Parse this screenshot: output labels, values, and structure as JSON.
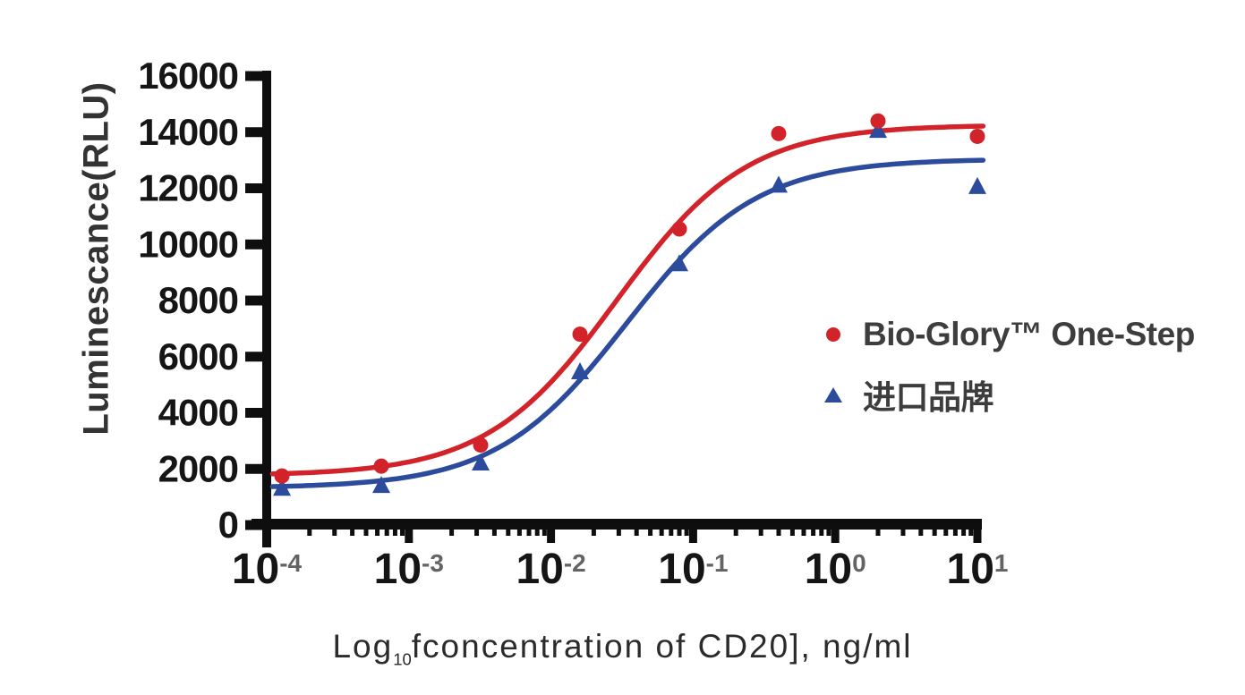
{
  "figure": {
    "background": "#ffffff"
  },
  "chart_data": {
    "type": "scatter",
    "title": "",
    "xlabel": "Log₁₀fconcentration of CD20], ng/ml",
    "xlabel_parts": {
      "prefix": "Log",
      "subscript": "10",
      "rest": "fconcentration of CD20], ng/ml"
    },
    "ylabel": "Luminescance(RLU)",
    "x_scale": "log10",
    "x_axis_range_exponents": [
      -4,
      1
    ],
    "x_ticks": [
      {
        "base": "10",
        "exp": "-4"
      },
      {
        "base": "10",
        "exp": "-3"
      },
      {
        "base": "10",
        "exp": "-2"
      },
      {
        "base": "10",
        "exp": "-1"
      },
      {
        "base": "10",
        "exp": "0"
      },
      {
        "base": "10",
        "exp": "1"
      }
    ],
    "y_ticks": [
      0,
      2000,
      4000,
      6000,
      8000,
      10000,
      12000,
      14000,
      16000
    ],
    "y_axis_range": [
      0,
      16000
    ],
    "grid": false,
    "legend_position": "right-center",
    "colors": {
      "axis": "#0e0e0e",
      "tick_label": "#151515",
      "exponent_label": "#646464",
      "red_series": "#d2232a",
      "blue_series": "#2c4b9c"
    },
    "series": [
      {
        "name": "Bio-Glory™ One-Step",
        "color": "#d2232a",
        "marker": "circle",
        "x": [
          0.000128,
          0.00064,
          0.0032,
          0.016,
          0.08,
          0.4,
          2,
          10
        ],
        "y": [
          1750,
          2100,
          2850,
          6800,
          10550,
          13950,
          14400,
          13850
        ],
        "fit_4pl": {
          "bottom": 1760,
          "top": 14260,
          "ec50": 0.029,
          "hill": 0.95
        }
      },
      {
        "name": "进口品牌",
        "color": "#2c4b9c",
        "marker": "triangle-up",
        "x": [
          0.000128,
          0.00064,
          0.0032,
          0.016,
          0.08,
          0.4,
          2,
          10
        ],
        "y": [
          1300,
          1400,
          2200,
          5450,
          9300,
          12100,
          14050,
          12050
        ],
        "fit_4pl": {
          "bottom": 1320,
          "top": 13050,
          "ec50": 0.034,
          "hill": 0.95
        }
      }
    ]
  }
}
